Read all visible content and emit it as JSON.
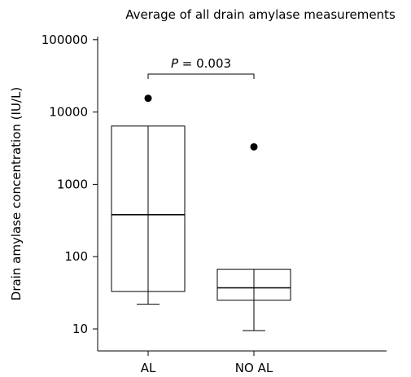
{
  "chart_data": {
    "type": "box",
    "title": "Average of all drain amylase measurements",
    "ylabel": "Drain amylase concentration (IU/L)",
    "xlabel": "",
    "yscale": "log",
    "ylim": [
      7,
      150000
    ],
    "yticks": [
      10,
      100,
      1000,
      10000,
      100000
    ],
    "ytick_labels": [
      "10",
      "100",
      "1000",
      "10000",
      "100000"
    ],
    "categories": [
      "AL",
      "NO AL"
    ],
    "boxes": [
      {
        "category": "AL",
        "whisker_low": 22,
        "q1": 33,
        "median": 380,
        "q3": 6400,
        "whisker_high": 6400,
        "outliers": [
          15500
        ]
      },
      {
        "category": "NO AL",
        "whisker_low": 9.5,
        "q1": 25,
        "median": 37,
        "q3": 67,
        "whisker_high": 67,
        "outliers": [
          3300
        ]
      }
    ],
    "annotation": {
      "p_symbol": "P",
      "p_rest": " = 0.003"
    },
    "grid": false
  }
}
